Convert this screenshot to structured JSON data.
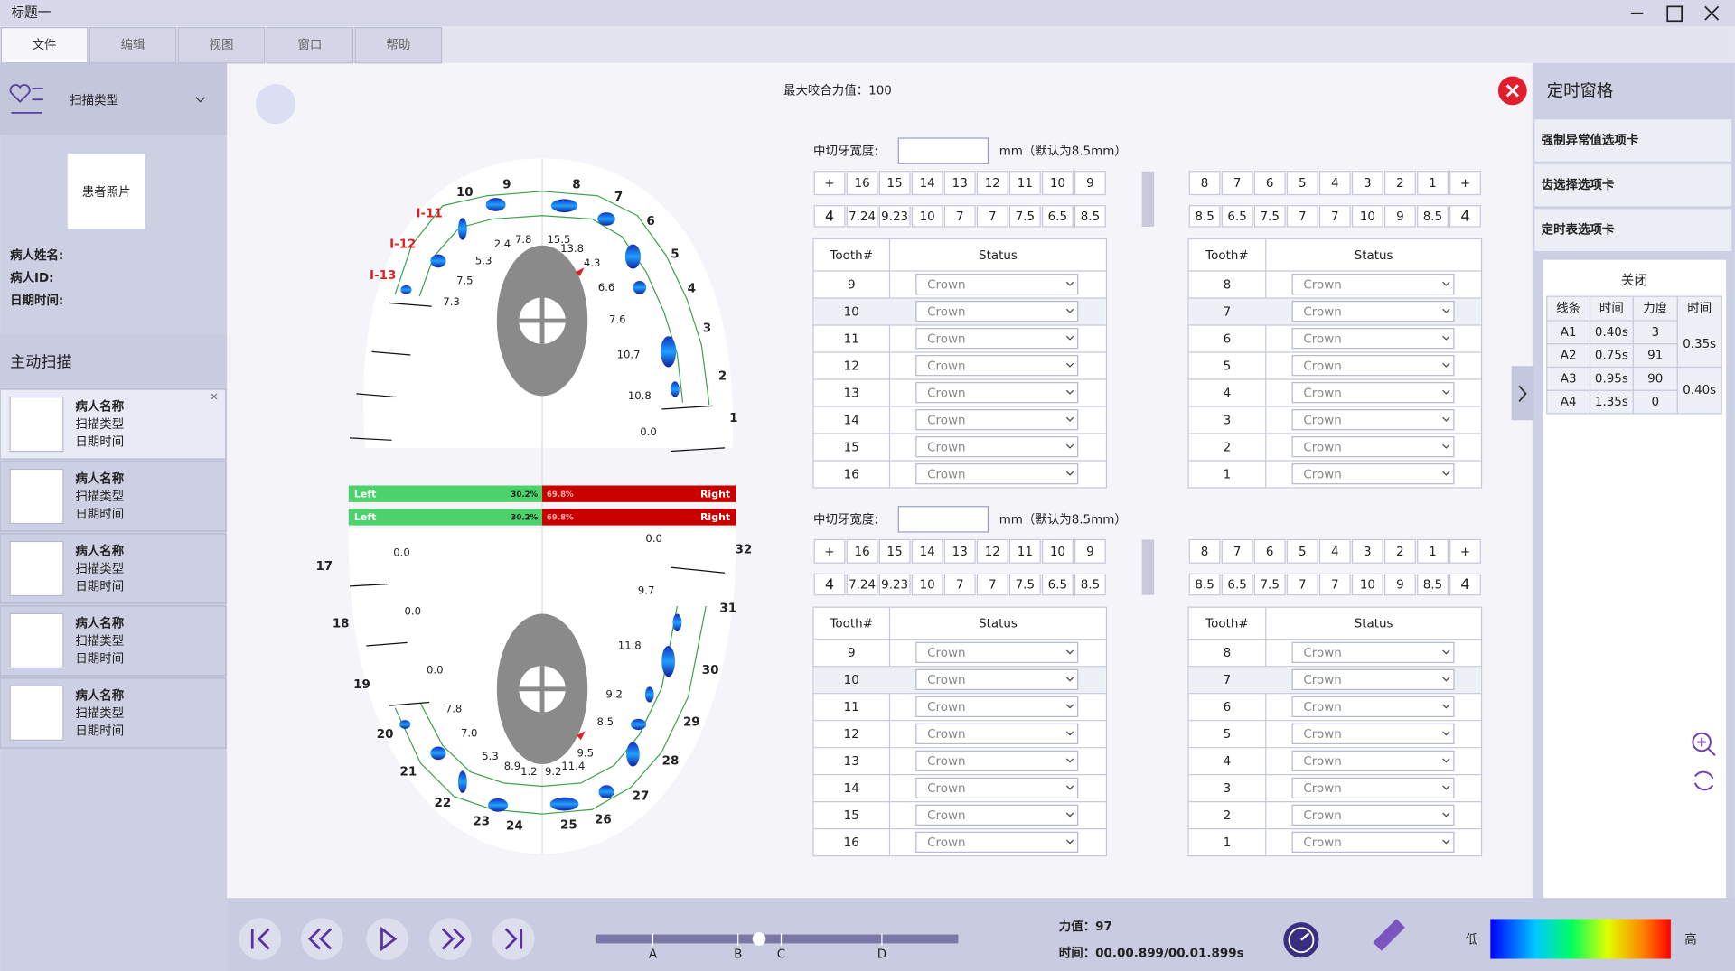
{
  "window": {
    "title": "标题一",
    "menu": [
      "文件",
      "编辑",
      "视图",
      "窗口",
      "帮助"
    ]
  },
  "sidebar": {
    "scan_type": "扫描类型",
    "photo": "患者照片",
    "fields": [
      "病人姓名:",
      "病人ID:",
      "日期时间:"
    ],
    "section": "主动扫描",
    "records": [
      {
        "name": "病人名称",
        "type": "扫描类型",
        "date": "日期时间"
      },
      {
        "name": "病人名称",
        "type": "扫描类型",
        "date": "日期时间"
      },
      {
        "name": "病人名称",
        "type": "扫描类型",
        "date": "日期时间"
      },
      {
        "name": "病人名称",
        "type": "扫描类型",
        "date": "日期时间"
      },
      {
        "name": "病人名称",
        "type": "扫描类型",
        "date": "日期时间"
      }
    ]
  },
  "arch": {
    "max_force": "最大咬合力值：100",
    "upper": {
      "teeth": [
        10,
        9,
        8,
        7,
        6,
        5,
        4,
        3,
        2,
        1
      ],
      "implants": [
        "I-11",
        "I-12",
        "I-13"
      ],
      "values": [
        "2.4",
        "7.8",
        "15.5",
        "13.8",
        "4.3",
        "6.6",
        "5.3",
        "7.5",
        "7.3",
        "7.6",
        "10.7",
        "10.8",
        "0.0"
      ]
    },
    "balance": [
      {
        "left": "Left",
        "left_pct": "30.2%",
        "right_pct": "69.8%",
        "right": "Right"
      },
      {
        "left": "Left",
        "left_pct": "30.2%",
        "right_pct": "69.8%",
        "right": "Right"
      }
    ],
    "lower": {
      "teeth": [
        17,
        18,
        19,
        20,
        21,
        22,
        23,
        24,
        25,
        26,
        27,
        28,
        29,
        30,
        31,
        32
      ],
      "values": [
        "0.0",
        "0.0",
        "0.0",
        "0.0",
        "9.7",
        "11.8",
        "9.2",
        "8.5",
        "9.5",
        "7.8",
        "7.0",
        "5.3",
        "8.9",
        "1.2",
        "9.2",
        "11.4"
      ]
    }
  },
  "panels": [
    {
      "width_label": "中切牙宽度:",
      "unit": "mm（默认为8.5mm）",
      "left_strip": {
        "head": [
          "+",
          16,
          15,
          14,
          13,
          12,
          11,
          10,
          9
        ],
        "vals": [
          4,
          7.24,
          9.23,
          10,
          7,
          7,
          7.5,
          6.5,
          8.5
        ]
      },
      "right_strip": {
        "head": [
          8,
          7,
          6,
          5,
          4,
          3,
          2,
          1,
          "+"
        ],
        "vals": [
          8.5,
          6.5,
          7.5,
          7,
          7,
          10,
          9,
          8.5,
          4
        ]
      },
      "left_table": {
        "columns": [
          "Tooth#",
          "Status"
        ],
        "rows": [
          [
            9,
            "Crown"
          ],
          [
            10,
            "Crown"
          ],
          [
            11,
            "Crown"
          ],
          [
            12,
            "Crown"
          ],
          [
            13,
            "Crown"
          ],
          [
            14,
            "Crown"
          ],
          [
            15,
            "Crown"
          ],
          [
            16,
            "Crown"
          ]
        ]
      },
      "right_table": {
        "columns": [
          "Tooth#",
          "Status"
        ],
        "rows": [
          [
            8,
            "Crown"
          ],
          [
            7,
            "Crown"
          ],
          [
            6,
            "Crown"
          ],
          [
            5,
            "Crown"
          ],
          [
            4,
            "Crown"
          ],
          [
            3,
            "Crown"
          ],
          [
            2,
            "Crown"
          ],
          [
            1,
            "Crown"
          ]
        ]
      }
    },
    {
      "width_label": "中切牙宽度:",
      "unit": "mm（默认为8.5mm）",
      "left_strip": {
        "head": [
          "+",
          16,
          15,
          14,
          13,
          12,
          11,
          10,
          9
        ],
        "vals": [
          4,
          7.24,
          9.23,
          10,
          7,
          7,
          7.5,
          6.5,
          8.5
        ]
      },
      "right_strip": {
        "head": [
          8,
          7,
          6,
          5,
          4,
          3,
          2,
          1,
          "+"
        ],
        "vals": [
          8.5,
          6.5,
          7.5,
          7,
          7,
          10,
          9,
          8.5,
          4
        ]
      },
      "left_table": {
        "columns": [
          "Tooth#",
          "Status"
        ],
        "rows": [
          [
            9,
            "Crown"
          ],
          [
            10,
            "Crown"
          ],
          [
            11,
            "Crown"
          ],
          [
            12,
            "Crown"
          ],
          [
            13,
            "Crown"
          ],
          [
            14,
            "Crown"
          ],
          [
            15,
            "Crown"
          ],
          [
            16,
            "Crown"
          ]
        ]
      },
      "right_table": {
        "columns": [
          "Tooth#",
          "Status"
        ],
        "rows": [
          [
            8,
            "Crown"
          ],
          [
            7,
            "Crown"
          ],
          [
            6,
            "Crown"
          ],
          [
            5,
            "Crown"
          ],
          [
            4,
            "Crown"
          ],
          [
            3,
            "Crown"
          ],
          [
            2,
            "Crown"
          ],
          [
            1,
            "Crown"
          ]
        ]
      }
    }
  ],
  "timing": {
    "title": "定时窗格",
    "tabs": [
      "强制异常值选项卡",
      "齿选择选项卡",
      "定时表选项卡"
    ],
    "close": "关闭",
    "columns": [
      "线条",
      "时间",
      "力度",
      "时间"
    ],
    "rows": [
      [
        "A1",
        "0.40s",
        3
      ],
      [
        "A2",
        "0.75s",
        91
      ],
      [
        "A3",
        "0.95s",
        90
      ],
      [
        "A4",
        "1.35s",
        0
      ]
    ],
    "merged": [
      "0.35s",
      "0.40s"
    ]
  },
  "playback": {
    "markers": [
      "A",
      "B",
      "C",
      "D"
    ],
    "force": "力值：97",
    "time": "时间：00.00.899/00.01.899s",
    "low": "低",
    "high": "高"
  }
}
